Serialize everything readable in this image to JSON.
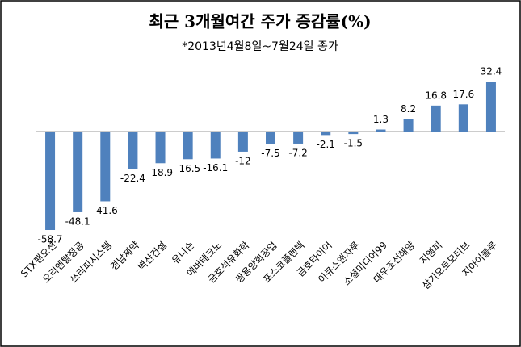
{
  "chart_data": {
    "type": "bar",
    "title": "최근 3개월여간 주가 증감률(%)",
    "subtitle": "*2013년4월8일~7월24일 종가",
    "categories": [
      "STX팬오션",
      "오리엔탈정공",
      "쓰리피시스템",
      "경남제약",
      "벽산건설",
      "유니슨",
      "에버테크노",
      "금호석유화학",
      "쌍용양회공업",
      "포스코플랜텍",
      "금호타이어",
      "이큐스앤자루",
      "소셜미디어99",
      "대우조선해양",
      "지엠피",
      "삼기오토모티브",
      "지아이블루"
    ],
    "values": [
      -58.7,
      -48.1,
      -41.6,
      -22.4,
      -18.9,
      -16.5,
      -16.1,
      -12,
      -7.5,
      -7.2,
      -2.1,
      -1.5,
      1.3,
      8.2,
      16.8,
      17.6,
      32.4
    ],
    "color": "#4f81bd"
  }
}
